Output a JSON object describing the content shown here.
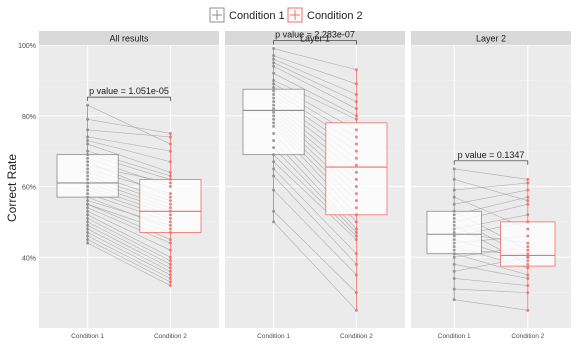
{
  "chart_data": {
    "type": "box",
    "title": "",
    "ylabel": "Correct Rate",
    "xlabel": "",
    "ylim": [
      0.2,
      1.0
    ],
    "yticks": [
      {
        "value": 0.4,
        "label": "40%"
      },
      {
        "value": 0.6,
        "label": "60%"
      },
      {
        "value": 0.8,
        "label": "80%"
      },
      {
        "value": 1.0,
        "label": "100%"
      }
    ],
    "legend": {
      "position": "top",
      "items": [
        {
          "label": "Condition 1",
          "color": "#8c8c8c"
        },
        {
          "label": "Condition 2",
          "color": "#ef6f6a"
        }
      ]
    },
    "categories": [
      "Condition 1",
      "Condition 2"
    ],
    "panels": [
      {
        "label": "All results",
        "p_value_text": "p value = 1.051e-05",
        "pairs": [
          [
            0.83,
            0.72
          ],
          [
            0.79,
            0.75
          ],
          [
            0.76,
            0.74
          ],
          [
            0.74,
            0.7
          ],
          [
            0.73,
            0.67
          ],
          [
            0.72,
            0.64
          ],
          [
            0.7,
            0.63
          ],
          [
            0.69,
            0.62
          ],
          [
            0.68,
            0.6
          ],
          [
            0.67,
            0.57
          ],
          [
            0.66,
            0.61
          ],
          [
            0.65,
            0.58
          ],
          [
            0.64,
            0.56
          ],
          [
            0.63,
            0.55
          ],
          [
            0.62,
            0.54
          ],
          [
            0.61,
            0.53
          ],
          [
            0.6,
            0.52
          ],
          [
            0.59,
            0.51
          ],
          [
            0.58,
            0.5
          ],
          [
            0.57,
            0.48
          ],
          [
            0.56,
            0.49
          ],
          [
            0.55,
            0.47
          ],
          [
            0.55,
            0.45
          ],
          [
            0.54,
            0.44
          ],
          [
            0.53,
            0.42
          ],
          [
            0.52,
            0.4
          ],
          [
            0.51,
            0.39
          ],
          [
            0.5,
            0.38
          ],
          [
            0.49,
            0.37
          ],
          [
            0.48,
            0.36
          ],
          [
            0.47,
            0.35
          ],
          [
            0.46,
            0.34
          ],
          [
            0.45,
            0.33
          ],
          [
            0.44,
            0.32
          ]
        ],
        "box": [
          {
            "q1": 0.57,
            "median": 0.61,
            "q3": 0.69,
            "whisker_low": 0.44,
            "whisker_high": 0.83
          },
          {
            "q1": 0.47,
            "median": 0.53,
            "q3": 0.62,
            "whisker_low": 0.32,
            "whisker_high": 0.75
          }
        ]
      },
      {
        "label": "Layer 1",
        "p_value_text": "p value = 2.283e-07",
        "pairs": [
          [
            0.99,
            0.93
          ],
          [
            0.97,
            0.89
          ],
          [
            0.96,
            0.86
          ],
          [
            0.95,
            0.84
          ],
          [
            0.94,
            0.82
          ],
          [
            0.92,
            0.8
          ],
          [
            0.9,
            0.79
          ],
          [
            0.89,
            0.76
          ],
          [
            0.88,
            0.74
          ],
          [
            0.87,
            0.72
          ],
          [
            0.86,
            0.7
          ],
          [
            0.85,
            0.68
          ],
          [
            0.84,
            0.66
          ],
          [
            0.83,
            0.64
          ],
          [
            0.82,
            0.62
          ],
          [
            0.81,
            0.6
          ],
          [
            0.8,
            0.58
          ],
          [
            0.79,
            0.56
          ],
          [
            0.78,
            0.54
          ],
          [
            0.77,
            0.52
          ],
          [
            0.75,
            0.5
          ],
          [
            0.73,
            0.48
          ],
          [
            0.71,
            0.47
          ],
          [
            0.69,
            0.46
          ],
          [
            0.67,
            0.45
          ],
          [
            0.65,
            0.41
          ],
          [
            0.63,
            0.38
          ],
          [
            0.59,
            0.35
          ],
          [
            0.53,
            0.3
          ],
          [
            0.5,
            0.25
          ]
        ],
        "box": [
          {
            "q1": 0.69,
            "median": 0.815,
            "q3": 0.875,
            "whisker_low": 0.5,
            "whisker_high": 0.99
          },
          {
            "q1": 0.52,
            "median": 0.655,
            "q3": 0.78,
            "whisker_low": 0.25,
            "whisker_high": 0.93
          }
        ]
      },
      {
        "label": "Layer 2",
        "p_value_text": "p value = 0.1347",
        "pairs": [
          [
            0.65,
            0.62
          ],
          [
            0.62,
            0.56
          ],
          [
            0.59,
            0.61
          ],
          [
            0.57,
            0.48
          ],
          [
            0.55,
            0.59
          ],
          [
            0.53,
            0.42
          ],
          [
            0.52,
            0.57
          ],
          [
            0.51,
            0.4
          ],
          [
            0.5,
            0.55
          ],
          [
            0.49,
            0.38
          ],
          [
            0.48,
            0.52
          ],
          [
            0.47,
            0.44
          ],
          [
            0.46,
            0.5
          ],
          [
            0.45,
            0.39
          ],
          [
            0.44,
            0.46
          ],
          [
            0.43,
            0.37
          ],
          [
            0.42,
            0.41
          ],
          [
            0.41,
            0.35
          ],
          [
            0.4,
            0.43
          ],
          [
            0.38,
            0.34
          ],
          [
            0.36,
            0.4
          ],
          [
            0.34,
            0.32
          ],
          [
            0.31,
            0.3
          ],
          [
            0.28,
            0.25
          ]
        ],
        "box": [
          {
            "q1": 0.41,
            "median": 0.465,
            "q3": 0.53,
            "whisker_low": 0.28,
            "whisker_high": 0.65
          },
          {
            "q1": 0.375,
            "median": 0.405,
            "q3": 0.5,
            "whisker_low": 0.25,
            "whisker_high": 0.62
          }
        ]
      }
    ]
  }
}
